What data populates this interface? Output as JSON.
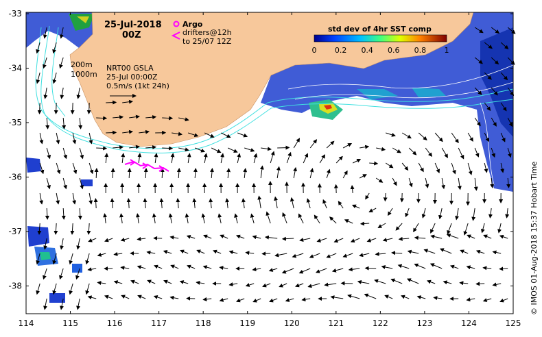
{
  "map": {
    "date": "25-Jul-2018",
    "hour": "00Z",
    "depth_labels": [
      "200m",
      "1000m"
    ],
    "product": "NRT00 GSLA",
    "product_time": "25-Jul 00:00Z",
    "scale_label": "0.5m/s (1kt 24h)",
    "legend": {
      "argo": "Argo",
      "drifters": "drifters@12h",
      "drifters_to": "to 25/07 12Z"
    },
    "colorbar": {
      "title": "std dev of 4hr SST comp",
      "ticks": [
        "0",
        "0.2",
        "0.4",
        "0.6",
        "0.8",
        "1"
      ]
    },
    "credit": "© IMOS 01-Aug-2018 15:37 Hobart Time",
    "lon_ticks": [
      "114",
      "115",
      "116",
      "117",
      "118",
      "119",
      "120",
      "121",
      "122",
      "123",
      "124",
      "125"
    ],
    "lat_ticks": [
      "-33",
      "-34",
      "-35",
      "-36",
      "-37",
      "-38"
    ],
    "colors": {
      "land": "#f7c89b",
      "contour": "#40e0e0",
      "drifter": "#ff00ff",
      "frame": "#000000"
    }
  }
}
